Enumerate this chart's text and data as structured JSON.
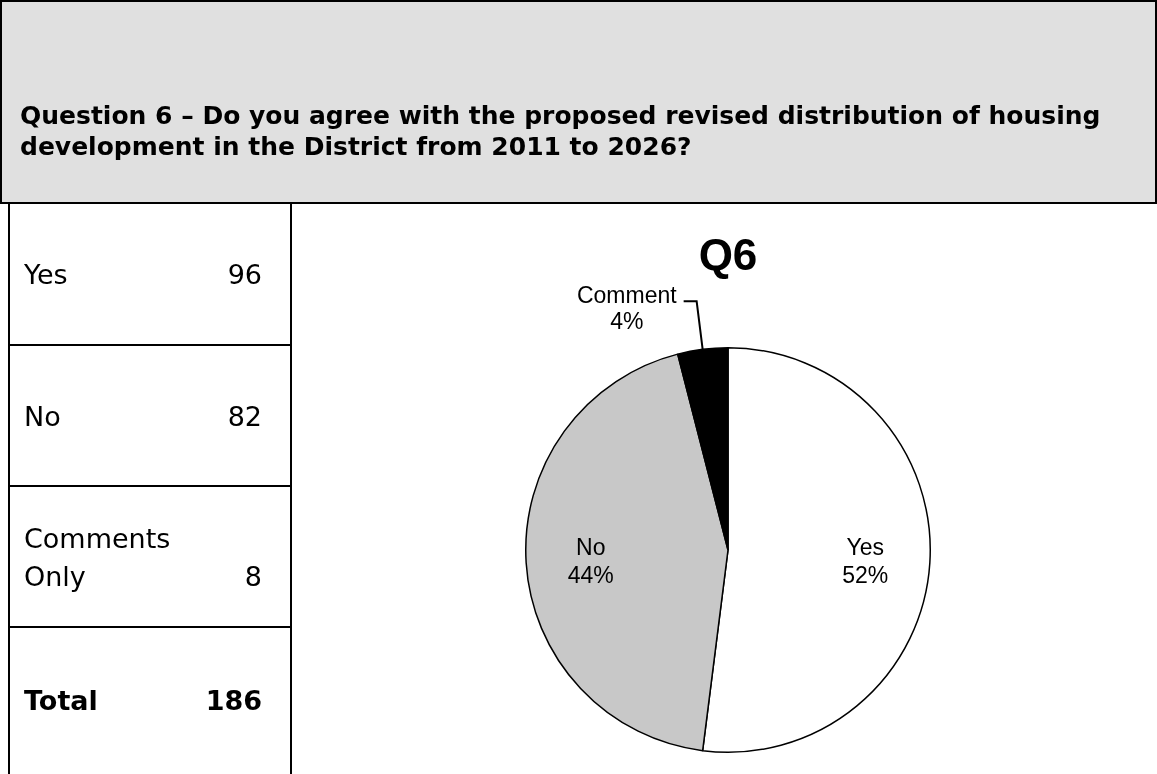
{
  "chart_data": [
    {
      "type": "other",
      "title": "Question 6 – Do you agree with the proposed revised distribution of housing development in the District from 2011 to 2026?",
      "annotations": [
        "Yes",
        "96",
        "No",
        "82",
        "Comments Only",
        "8",
        "Total",
        "186"
      ]
    },
    {
      "type": "pie",
      "title": "Q6",
      "categories": [
        "Yes",
        "No",
        "Comment"
      ],
      "values": [
        52,
        44,
        4
      ],
      "colors": [
        "#ffffff",
        "#c8c8c8",
        "#000000"
      ],
      "value_labels": [
        "52%",
        "44%",
        "4%"
      ]
    }
  ]
}
